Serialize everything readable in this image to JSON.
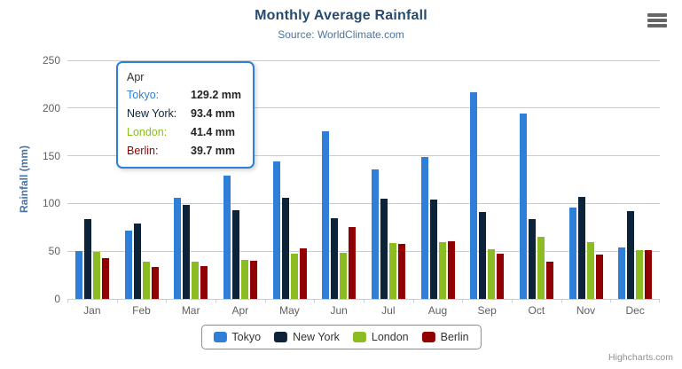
{
  "header": {
    "title": "Monthly Average Rainfall",
    "subtitle": "Source: WorldClimate.com"
  },
  "chart_data": {
    "type": "bar",
    "title": "Monthly Average Rainfall",
    "subtitle": "Source: WorldClimate.com",
    "categories": [
      "Jan",
      "Feb",
      "Mar",
      "Apr",
      "May",
      "Jun",
      "Jul",
      "Aug",
      "Sep",
      "Oct",
      "Nov",
      "Dec"
    ],
    "series": [
      {
        "name": "Tokyo",
        "color": "#2f7ed8",
        "values": [
          49.9,
          71.5,
          106.4,
          129.2,
          144.0,
          176.0,
          135.6,
          148.5,
          216.4,
          194.1,
          95.6,
          54.4
        ]
      },
      {
        "name": "New York",
        "color": "#0d233a",
        "values": [
          83.6,
          78.8,
          98.5,
          93.4,
          106.0,
          84.5,
          105.0,
          104.3,
          91.2,
          83.5,
          106.6,
          92.3
        ]
      },
      {
        "name": "London",
        "color": "#8bbc21",
        "values": [
          48.9,
          38.8,
          39.3,
          41.4,
          47.0,
          48.3,
          59.0,
          59.6,
          52.4,
          65.2,
          59.3,
          51.2
        ]
      },
      {
        "name": "Berlin",
        "color": "#910000",
        "values": [
          42.4,
          33.2,
          34.5,
          39.7,
          52.6,
          75.5,
          57.4,
          60.4,
          47.6,
          39.1,
          46.8,
          51.1
        ]
      }
    ],
    "xlabel": "",
    "ylabel": "Rainfall (mm)",
    "ylim": [
      0,
      250
    ],
    "yticks": [
      0,
      50,
      100,
      150,
      200,
      250
    ],
    "unit": "mm",
    "grid": true,
    "legend_position": "bottom"
  },
  "tooltip": {
    "header": "Apr",
    "rows": [
      {
        "label": "Tokyo:",
        "value": "129.2 mm",
        "color": "#2f7ed8"
      },
      {
        "label": "New York:",
        "value": "93.4 mm",
        "color": "#0d233a"
      },
      {
        "label": "London:",
        "value": "41.4 mm",
        "color": "#8bbc21"
      },
      {
        "label": "Berlin:",
        "value": "39.7 mm",
        "color": "#910000"
      }
    ]
  },
  "credits": {
    "label": "Highcharts.com"
  },
  "colors": {
    "title": "#274b6d",
    "subtitle": "#4d759e",
    "axis_label": "#606060",
    "y_title": "#4572a7",
    "gridline": "#cccccc",
    "axis_line": "#c0d0e0",
    "tooltip_border": "#2f7ed8"
  }
}
